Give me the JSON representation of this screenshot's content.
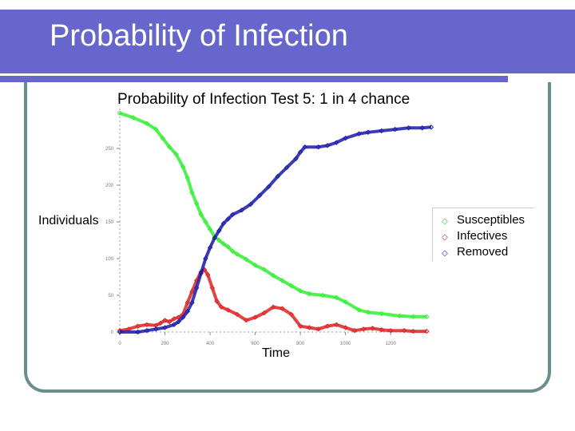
{
  "slide": {
    "title": "Probability of Infection"
  },
  "colors": {
    "title_bar": "#6666cc",
    "frame": "#6b8f8c",
    "susceptibles": "#33ee33",
    "infectives": "#dd2222",
    "removed": "#1a1aaa"
  },
  "chart_data": {
    "type": "scatter",
    "title": "Probability of Infection Test 5:  1 in 4 chance",
    "xlabel": "Time",
    "ylabel": "Individuals",
    "xlim": [
      0,
      1380
    ],
    "ylim": [
      0,
      300
    ],
    "x_ticks": [
      "0",
      "200",
      "400",
      "600",
      "800",
      "1000",
      "1200"
    ],
    "y_ticks": [
      "0",
      "50",
      "100",
      "150",
      "200",
      "250"
    ],
    "legend_position": "right",
    "series": [
      {
        "name": "Susceptibles",
        "marker": "◇",
        "color": "#33ee33",
        "points": [
          [
            0,
            298
          ],
          [
            60,
            292
          ],
          [
            120,
            284
          ],
          [
            160,
            276
          ],
          [
            190,
            264
          ],
          [
            220,
            252
          ],
          [
            250,
            242
          ],
          [
            280,
            225
          ],
          [
            300,
            210
          ],
          [
            320,
            190
          ],
          [
            340,
            175
          ],
          [
            360,
            160
          ],
          [
            380,
            150
          ],
          [
            400,
            140
          ],
          [
            420,
            130
          ],
          [
            440,
            125
          ],
          [
            460,
            120
          ],
          [
            480,
            116
          ],
          [
            500,
            110
          ],
          [
            520,
            106
          ],
          [
            560,
            99
          ],
          [
            600,
            91
          ],
          [
            640,
            85
          ],
          [
            680,
            77
          ],
          [
            720,
            70
          ],
          [
            760,
            63
          ],
          [
            800,
            56
          ],
          [
            840,
            52
          ],
          [
            900,
            50
          ],
          [
            960,
            47
          ],
          [
            1000,
            41
          ],
          [
            1060,
            30
          ],
          [
            1100,
            27
          ],
          [
            1160,
            25
          ],
          [
            1240,
            22
          ],
          [
            1300,
            21
          ],
          [
            1360,
            21
          ]
        ]
      },
      {
        "name": "Infectives",
        "marker": "◇",
        "color": "#dd2222",
        "points": [
          [
            0,
            2
          ],
          [
            40,
            4
          ],
          [
            80,
            8
          ],
          [
            120,
            10
          ],
          [
            160,
            9
          ],
          [
            180,
            12
          ],
          [
            200,
            16
          ],
          [
            220,
            14
          ],
          [
            240,
            18
          ],
          [
            260,
            20
          ],
          [
            280,
            24
          ],
          [
            300,
            40
          ],
          [
            320,
            55
          ],
          [
            340,
            70
          ],
          [
            360,
            82
          ],
          [
            375,
            85
          ],
          [
            390,
            78
          ],
          [
            410,
            60
          ],
          [
            430,
            42
          ],
          [
            450,
            34
          ],
          [
            480,
            30
          ],
          [
            520,
            24
          ],
          [
            560,
            16
          ],
          [
            600,
            20
          ],
          [
            640,
            26
          ],
          [
            680,
            34
          ],
          [
            720,
            32
          ],
          [
            760,
            24
          ],
          [
            800,
            8
          ],
          [
            840,
            6
          ],
          [
            880,
            4
          ],
          [
            920,
            8
          ],
          [
            960,
            10
          ],
          [
            1000,
            6
          ],
          [
            1040,
            2
          ],
          [
            1080,
            4
          ],
          [
            1120,
            5
          ],
          [
            1160,
            3
          ],
          [
            1200,
            2
          ],
          [
            1260,
            2
          ],
          [
            1300,
            1
          ],
          [
            1360,
            1
          ]
        ]
      },
      {
        "name": "Removed",
        "marker": "◇",
        "color": "#1a1aaa",
        "points": [
          [
            0,
            0
          ],
          [
            80,
            0
          ],
          [
            120,
            2
          ],
          [
            160,
            4
          ],
          [
            200,
            6
          ],
          [
            240,
            10
          ],
          [
            260,
            14
          ],
          [
            280,
            20
          ],
          [
            300,
            28
          ],
          [
            320,
            40
          ],
          [
            340,
            60
          ],
          [
            360,
            80
          ],
          [
            380,
            100
          ],
          [
            400,
            115
          ],
          [
            420,
            128
          ],
          [
            440,
            138
          ],
          [
            460,
            148
          ],
          [
            480,
            154
          ],
          [
            500,
            160
          ],
          [
            540,
            166
          ],
          [
            580,
            174
          ],
          [
            620,
            186
          ],
          [
            660,
            198
          ],
          [
            700,
            212
          ],
          [
            740,
            224
          ],
          [
            780,
            236
          ],
          [
            800,
            245
          ],
          [
            820,
            252
          ],
          [
            880,
            252
          ],
          [
            920,
            254
          ],
          [
            960,
            258
          ],
          [
            1000,
            264
          ],
          [
            1060,
            270
          ],
          [
            1100,
            272
          ],
          [
            1160,
            274
          ],
          [
            1220,
            276
          ],
          [
            1280,
            278
          ],
          [
            1340,
            278
          ],
          [
            1380,
            279
          ]
        ]
      }
    ]
  }
}
